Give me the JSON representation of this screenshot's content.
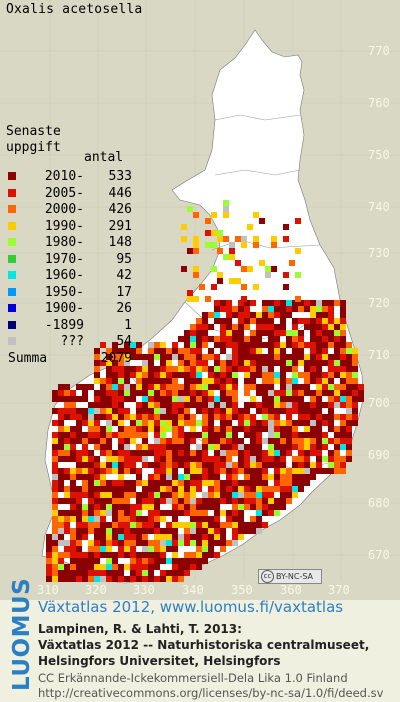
{
  "map_title": "Oxalis acetosella",
  "legend": {
    "heading1": "Senaste",
    "heading2": "uppgift",
    "count_label": "antal",
    "rows": [
      {
        "label": "2010-",
        "count": "533",
        "color": "#8b0000"
      },
      {
        "label": "2005-",
        "count": "446",
        "color": "#dd1100"
      },
      {
        "label": "2000-",
        "count": "426",
        "color": "#ff6600"
      },
      {
        "label": "1990-",
        "count": "291",
        "color": "#ffcc00"
      },
      {
        "label": "1980-",
        "count": "148",
        "color": "#99ff33"
      },
      {
        "label": "1970-",
        "count": "95",
        "color": "#33cc33"
      },
      {
        "label": "1960-",
        "count": "42",
        "color": "#00e5e5"
      },
      {
        "label": "1950-",
        "count": "17",
        "color": "#0099ff"
      },
      {
        "label": "1900-",
        "count": "26",
        "color": "#0000dd"
      },
      {
        "label": "-1899",
        "count": "1",
        "color": "#000077"
      },
      {
        "label": "???",
        "count": "54",
        "color": "#c0c0c0"
      }
    ],
    "sum_label": "Summa",
    "sum_count": "2079"
  },
  "y_ticks": [
    "770",
    "760",
    "750",
    "740",
    "730",
    "720",
    "710",
    "700",
    "690",
    "680",
    "670"
  ],
  "x_ticks": [
    "310",
    "320",
    "330",
    "340",
    "350",
    "360",
    "370"
  ],
  "license_badge": "BY-NC-SA",
  "logo": "LUOMUS",
  "atlas_line": "Växtatlas 2012, www.luomus.fi/vaxtatlas",
  "citation": [
    "Lampinen, R. & Lahti, T. 2013:",
    "Växtatlas 2012 -- Naturhistoriska centralmuseet,",
    "Helsingfors Universitet, Helsingfors"
  ],
  "license_lines": [
    "CC Erkännande-Ickekommersiell-Dela Lika 1.0 Finland",
    "http://creativecommons.org/licenses/by-nc-sa/1.0/fi/deed.sv"
  ],
  "colors": {
    "map_background": "#d8d8c4",
    "finland_land": "#ffffff",
    "brand_blue": "#2b7fc3"
  }
}
